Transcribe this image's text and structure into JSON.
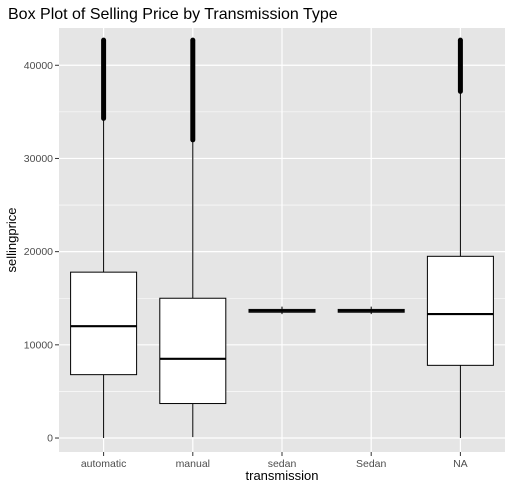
{
  "chart_data": {
    "type": "box",
    "title": "Box Plot of Selling Price by Transmission Type",
    "xlabel": "transmission",
    "ylabel": "sellingprice",
    "categories": [
      "automatic",
      "manual",
      "sedan",
      "Sedan",
      "NA"
    ],
    "ylim": [
      -1500,
      44000
    ],
    "yticks": [
      0,
      10000,
      20000,
      30000,
      40000
    ],
    "ytick_labels": [
      "0",
      "10000",
      "20000",
      "30000",
      "40000"
    ],
    "grid": true,
    "panel_color": "#e5e5e5",
    "grid_color": "#ffffff",
    "box_fill": "#ffffff",
    "line_color": "#000000",
    "series": [
      {
        "category": "automatic",
        "min": 0,
        "q1": 6800,
        "median": 12000,
        "q3": 17800,
        "max": 34300,
        "outliers_from": 34300,
        "outliers_to": 42700
      },
      {
        "category": "manual",
        "min": 100,
        "q1": 3700,
        "median": 8500,
        "q3": 15000,
        "max": 32000,
        "outliers_from": 32000,
        "outliers_to": 42700
      },
      {
        "category": "sedan",
        "min": 13300,
        "q1": 13500,
        "median": 13650,
        "q3": 13800,
        "max": 14100,
        "outliers_from": null,
        "outliers_to": null
      },
      {
        "category": "Sedan",
        "min": 13300,
        "q1": 13500,
        "median": 13650,
        "q3": 13800,
        "max": 14100,
        "outliers_from": null,
        "outliers_to": null
      },
      {
        "category": "NA",
        "min": 0,
        "q1": 7800,
        "median": 13300,
        "q3": 19500,
        "max": 37200,
        "outliers_from": 37200,
        "outliers_to": 42700
      }
    ]
  }
}
